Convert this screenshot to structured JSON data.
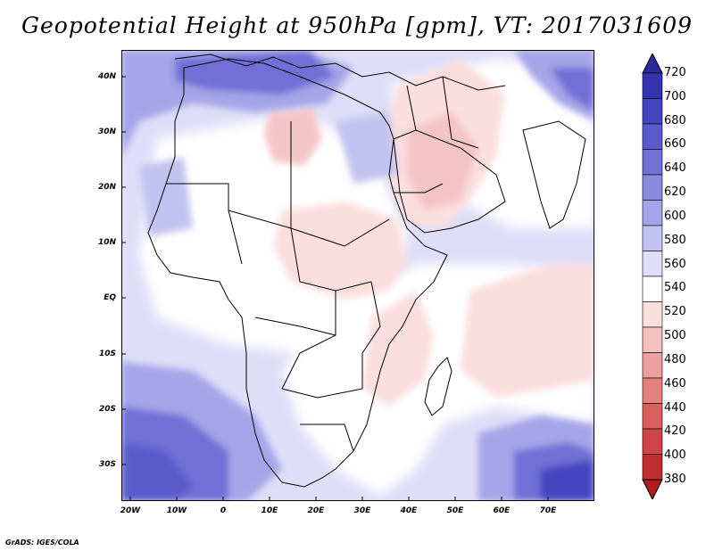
{
  "title": "Geopotential Height at 950hPa [gpm], VT: 2017031609",
  "credit": "GrADS: IGES/COLA",
  "axes": {
    "lat_labels": [
      "40N",
      "30N",
      "20N",
      "10N",
      "EQ",
      "10S",
      "20S",
      "30S"
    ],
    "lon_labels": [
      "20W",
      "10W",
      "0",
      "10E",
      "20E",
      "30E",
      "40E",
      "50E",
      "60E",
      "70E"
    ]
  },
  "colorbar": {
    "levels": [
      "720",
      "700",
      "680",
      "660",
      "640",
      "620",
      "600",
      "580",
      "560",
      "540",
      "520",
      "500",
      "480",
      "460",
      "440",
      "420",
      "400",
      "380"
    ],
    "colors": [
      "#2a2aa0",
      "#3434b0",
      "#4444c0",
      "#5a5acc",
      "#7070d6",
      "#8a8adf",
      "#a4a4e8",
      "#c2c2f0",
      "#dedef8",
      "#ffffff",
      "#fbdede",
      "#f5c0c0",
      "#eda0a0",
      "#e48080",
      "#da5e5e",
      "#cf4444",
      "#c22e2e",
      "#b01c1c"
    ]
  },
  "map": {
    "region": "Africa and Middle East",
    "lon_range": [
      -22,
      80
    ],
    "lat_range": [
      -37,
      45
    ],
    "field": "geopotential height 950hPa"
  }
}
